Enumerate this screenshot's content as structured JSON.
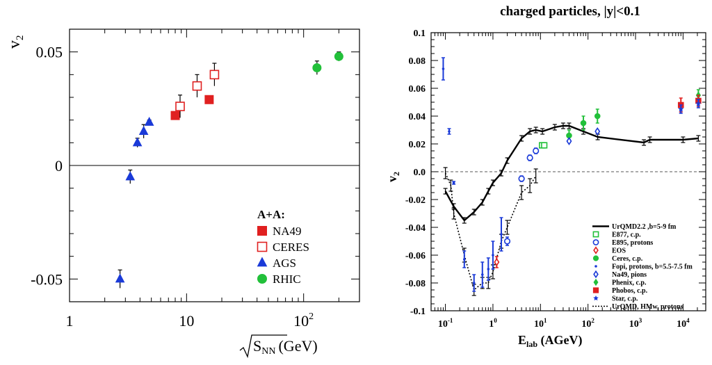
{
  "chart_data": [
    {
      "type": "scatter",
      "title": "",
      "xlabel": "√s_NN (GeV)",
      "xlabel_main": "S",
      "xlabel_sub": "NN",
      "xlabel_unit": "(GeV)",
      "ylabel": "v2",
      "ylabel_main": "v",
      "ylabel_sub": "2",
      "xscale": "log",
      "xlim": [
        1,
        300
      ],
      "ylim": [
        -0.06,
        0.06
      ],
      "x_ticks": [
        {
          "value": 1,
          "label": "1"
        },
        {
          "value": 10,
          "label": "10"
        },
        {
          "value": 100,
          "label": "10",
          "sup": "2"
        }
      ],
      "y_ticks": [
        {
          "value": -0.05,
          "label": "-0.05"
        },
        {
          "value": 0,
          "label": "0"
        },
        {
          "value": 0.05,
          "label": "0.05"
        }
      ],
      "zero_line": true,
      "legend_title": "A+A:",
      "legend_position": "bottom-right",
      "series": [
        {
          "name": "NA49",
          "marker": "square",
          "fill": true,
          "color": "#e02020",
          "points": [
            {
              "x": 8.0,
              "y": 0.022,
              "err": 0
            },
            {
              "x": 15.6,
              "y": 0.029,
              "err": 0
            }
          ]
        },
        {
          "name": "CERES",
          "marker": "square",
          "fill": false,
          "color": "#e02020",
          "points": [
            {
              "x": 8.8,
              "y": 0.026,
              "err": 0.005
            },
            {
              "x": 12.3,
              "y": 0.035,
              "err": 0.005
            },
            {
              "x": 17.3,
              "y": 0.04,
              "err": 0.005
            }
          ]
        },
        {
          "name": "AGS",
          "marker": "triangle",
          "fill": true,
          "color": "#1a3ad8",
          "points": [
            {
              "x": 2.7,
              "y": -0.05,
              "err": 0.004
            },
            {
              "x": 3.3,
              "y": -0.005,
              "err": 0.003
            },
            {
              "x": 3.8,
              "y": 0.01,
              "err": 0.002
            },
            {
              "x": 4.3,
              "y": 0.015,
              "err": 0.003
            },
            {
              "x": 4.8,
              "y": 0.019,
              "err": 0.001
            }
          ]
        },
        {
          "name": "RHIC",
          "marker": "circle",
          "fill": true,
          "color": "#22c03a",
          "points": [
            {
              "x": 130,
              "y": 0.043,
              "err": 0.003
            },
            {
              "x": 200,
              "y": 0.048,
              "err": 0.002
            }
          ]
        }
      ]
    },
    {
      "type": "scatter",
      "title": "charged particles, |y|<0.1",
      "xlabel": "E_lab (AGeV)",
      "xlabel_main": "E",
      "xlabel_sub": "lab",
      "xlabel_unit": " (AGeV)",
      "ylabel": "v2",
      "ylabel_main": "v",
      "ylabel_sub": "2",
      "xscale": "log",
      "xlim": [
        0.05,
        30000
      ],
      "ylim": [
        -0.1,
        0.1
      ],
      "x_ticks": [
        {
          "value": 0.1,
          "label": "10",
          "sup": "-1"
        },
        {
          "value": 1,
          "label": "1",
          "sup": "0"
        },
        {
          "value": 10,
          "label": "10",
          "sup": "1"
        },
        {
          "value": 100,
          "label": "10",
          "sup": "2"
        },
        {
          "value": 1000,
          "label": "10",
          "sup": "3"
        },
        {
          "value": 10000,
          "label": "10",
          "sup": "4"
        }
      ],
      "y_ticks": [
        {
          "value": -0.1,
          "label": "-0.1"
        },
        {
          "value": -0.08,
          "label": "-0.08"
        },
        {
          "value": -0.06,
          "label": "-0.06"
        },
        {
          "value": -0.04,
          "label": "-0.04"
        },
        {
          "value": -0.02,
          "label": "-0.02"
        },
        {
          "value": 0,
          "label": "0.0"
        },
        {
          "value": 0.02,
          "label": "0.02"
        },
        {
          "value": 0.04,
          "label": "0.04"
        },
        {
          "value": 0.06,
          "label": "0.06"
        },
        {
          "value": 0.08,
          "label": "0.08"
        },
        {
          "value": 0.1,
          "label": "0.1"
        }
      ],
      "zero_line": "dashed",
      "legend_position": "bottom-right",
      "series": [
        {
          "name": "UrQMD2.2 ,b=5-9 fm",
          "kind": "line",
          "color": "#000000",
          "points": [
            {
              "x": 0.1,
              "y": -0.014,
              "err": 0.002
            },
            {
              "x": 0.15,
              "y": -0.025,
              "err": 0.002
            },
            {
              "x": 0.25,
              "y": -0.035,
              "err": 0.002
            },
            {
              "x": 0.4,
              "y": -0.029,
              "err": 0.002
            },
            {
              "x": 0.6,
              "y": -0.022,
              "err": 0.002
            },
            {
              "x": 0.8,
              "y": -0.014,
              "err": 0.002
            },
            {
              "x": 1.0,
              "y": -0.008,
              "err": 0.002
            },
            {
              "x": 1.5,
              "y": -0.001,
              "err": 0.002
            },
            {
              "x": 2.0,
              "y": 0.008,
              "err": 0.002
            },
            {
              "x": 4.0,
              "y": 0.024,
              "err": 0.002
            },
            {
              "x": 6.0,
              "y": 0.029,
              "err": 0.002
            },
            {
              "x": 8.0,
              "y": 0.03,
              "err": 0.002
            },
            {
              "x": 11.0,
              "y": 0.029,
              "err": 0.002
            },
            {
              "x": 20.0,
              "y": 0.032,
              "err": 0.002
            },
            {
              "x": 30.0,
              "y": 0.033,
              "err": 0.002
            },
            {
              "x": 40.0,
              "y": 0.033,
              "err": 0.002
            },
            {
              "x": 80.0,
              "y": 0.029,
              "err": 0.002
            },
            {
              "x": 160.0,
              "y": 0.025,
              "err": 0.002
            },
            {
              "x": 1500.0,
              "y": 0.021,
              "err": 0.002
            },
            {
              "x": 2000.0,
              "y": 0.023,
              "err": 0.002
            },
            {
              "x": 10000.0,
              "y": 0.023,
              "err": 0.002
            },
            {
              "x": 21000.0,
              "y": 0.024,
              "err": 0.002
            }
          ]
        },
        {
          "name": "E877, c.p.",
          "marker": "square",
          "fill": false,
          "color": "#22c03a",
          "points": [
            {
              "x": 10.8,
              "y": 0.019,
              "err": 0.001
            },
            {
              "x": 12.0,
              "y": 0.019,
              "err": 0.001
            }
          ]
        },
        {
          "name": "E895, protons",
          "marker": "circle",
          "fill": false,
          "color": "#1a3ad8",
          "points": [
            {
              "x": 2.0,
              "y": -0.05,
              "err": 0.003
            },
            {
              "x": 4.0,
              "y": -0.005,
              "err": 0.002
            },
            {
              "x": 6.0,
              "y": 0.01,
              "err": 0.002
            },
            {
              "x": 8.0,
              "y": 0.015,
              "err": 0.002
            }
          ]
        },
        {
          "name": "EOS",
          "marker": "diamond",
          "fill": false,
          "color": "#e02020",
          "points": [
            {
              "x": 1.2,
              "y": -0.065,
              "err": 0.004
            }
          ]
        },
        {
          "name": "Ceres, c.p.",
          "marker": "circle",
          "fill": true,
          "color": "#22c03a",
          "points": [
            {
              "x": 40,
              "y": 0.026,
              "err": 0.004
            },
            {
              "x": 80,
              "y": 0.035,
              "err": 0.005
            },
            {
              "x": 158,
              "y": 0.04,
              "err": 0.005
            }
          ]
        },
        {
          "name": "Fopi, protons, b=5.5-7.5 fm",
          "marker": "dot",
          "fill": true,
          "color": "#1a3ad8",
          "points": [
            {
              "x": 0.09,
              "y": 0.074,
              "err": 0.008
            },
            {
              "x": 0.12,
              "y": 0.029,
              "err": 0.002
            },
            {
              "x": 0.15,
              "y": -0.008,
              "err": 0.001
            },
            {
              "x": 0.25,
              "y": -0.063,
              "err": 0.006
            },
            {
              "x": 0.4,
              "y": -0.08,
              "err": 0.006
            },
            {
              "x": 0.6,
              "y": -0.074,
              "err": 0.009
            },
            {
              "x": 0.8,
              "y": -0.07,
              "err": 0.008
            },
            {
              "x": 1.0,
              "y": -0.06,
              "err": 0.01
            },
            {
              "x": 1.5,
              "y": -0.045,
              "err": 0.012
            }
          ]
        },
        {
          "name": "Na49, pions",
          "marker": "diamond",
          "fill": false,
          "color": "#1a3ad8",
          "points": [
            {
              "x": 40,
              "y": 0.022,
              "err": 0.001
            },
            {
              "x": 158,
              "y": 0.029,
              "err": 0.001
            }
          ]
        },
        {
          "name": "Phenix, c.p.",
          "marker": "diamond",
          "fill": true,
          "color": "#22c03a",
          "points": [
            {
              "x": 21000,
              "y": 0.055,
              "err": 0.004
            }
          ]
        },
        {
          "name": "Phobos, c.p.",
          "marker": "square",
          "fill": true,
          "color": "#e02020",
          "points": [
            {
              "x": 9000,
              "y": 0.048,
              "err": 0.005
            },
            {
              "x": 21000,
              "y": 0.051,
              "err": 0.004
            }
          ]
        },
        {
          "name": "Star, c.p.",
          "marker": "star",
          "fill": true,
          "color": "#1a3ad8",
          "points": [
            {
              "x": 9000,
              "y": 0.045,
              "err": 0.003
            },
            {
              "x": 21000,
              "y": 0.049,
              "err": 0.003
            }
          ]
        },
        {
          "name": "UrQMD, HMw, protons",
          "kind": "dotted",
          "color": "#000000",
          "points": [
            {
              "x": 0.1,
              "y": -0.001,
              "err": 0.004
            },
            {
              "x": 0.13,
              "y": -0.01,
              "err": 0.004
            },
            {
              "x": 0.15,
              "y": -0.03,
              "err": 0.004
            },
            {
              "x": 0.25,
              "y": -0.06,
              "err": 0.005
            },
            {
              "x": 0.4,
              "y": -0.085,
              "err": 0.004
            },
            {
              "x": 0.6,
              "y": -0.08,
              "err": 0.004
            },
            {
              "x": 0.8,
              "y": -0.08,
              "err": 0.004
            },
            {
              "x": 1.0,
              "y": -0.072,
              "err": 0.005
            },
            {
              "x": 1.5,
              "y": -0.05,
              "err": 0.005
            },
            {
              "x": 2.0,
              "y": -0.04,
              "err": 0.005
            },
            {
              "x": 4.0,
              "y": -0.015,
              "err": 0.005
            },
            {
              "x": 6.0,
              "y": -0.01,
              "err": 0.005
            },
            {
              "x": 8.0,
              "y": -0.003,
              "err": 0.005
            }
          ]
        }
      ]
    }
  ]
}
